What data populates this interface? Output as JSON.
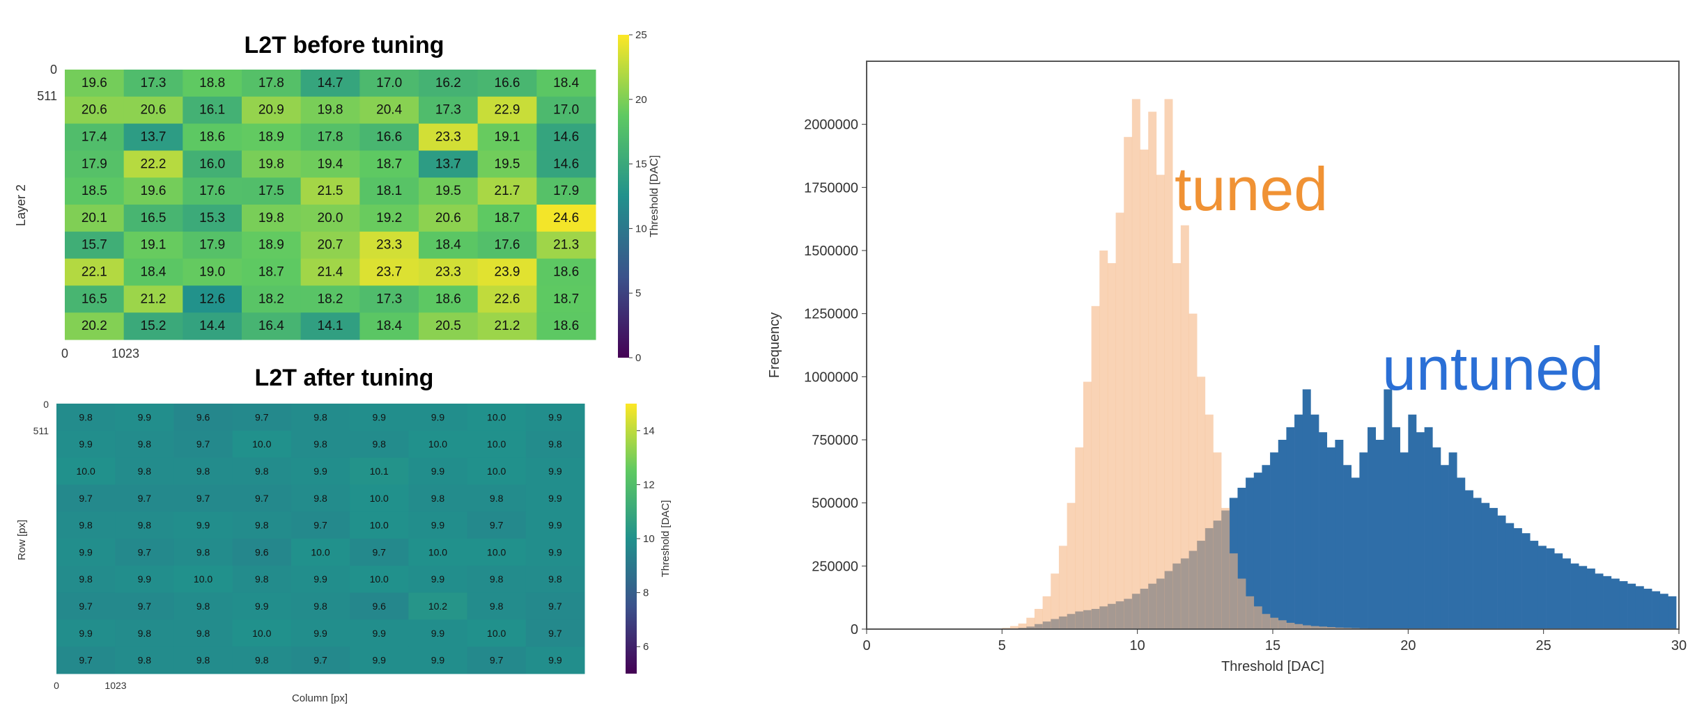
{
  "chart_data": [
    {
      "type": "heatmap",
      "title": "L2T before tuning",
      "ylabel": "Layer 2",
      "xlabel": "",
      "x_ticks": [
        "0",
        "1023"
      ],
      "y_ticks": [
        "0",
        "511"
      ],
      "colorbar_label": "Threshold [DAC]",
      "colorbar_ticks": [
        0,
        5,
        10,
        15,
        20,
        25
      ],
      "vmin": 0,
      "vmax": 25,
      "rows": 10,
      "cols": 9,
      "values": [
        [
          19.6,
          17.3,
          18.8,
          17.8,
          14.7,
          17.0,
          16.2,
          16.6,
          18.4
        ],
        [
          20.6,
          20.6,
          16.1,
          20.9,
          19.8,
          20.4,
          17.3,
          22.9,
          17.0
        ],
        [
          17.4,
          13.7,
          18.6,
          18.9,
          17.8,
          16.6,
          23.3,
          19.1,
          14.6
        ],
        [
          17.9,
          22.2,
          16.0,
          19.8,
          19.4,
          18.7,
          13.7,
          19.5,
          14.6
        ],
        [
          18.5,
          19.6,
          17.6,
          17.5,
          21.5,
          18.1,
          19.5,
          21.7,
          17.9
        ],
        [
          20.1,
          16.5,
          15.3,
          19.8,
          20.0,
          19.2,
          20.6,
          18.7,
          24.6
        ],
        [
          15.7,
          19.1,
          17.9,
          18.9,
          20.7,
          23.3,
          18.4,
          17.6,
          21.3
        ],
        [
          22.1,
          18.4,
          19.0,
          18.7,
          21.4,
          23.7,
          23.3,
          23.9,
          18.6
        ],
        [
          16.5,
          21.2,
          12.6,
          18.2,
          18.2,
          17.3,
          18.6,
          22.6,
          18.7
        ],
        [
          20.2,
          15.2,
          14.4,
          16.4,
          14.1,
          18.4,
          20.5,
          21.2,
          18.6
        ]
      ]
    },
    {
      "type": "heatmap",
      "title": "L2T after tuning",
      "ylabel": "Row [px]",
      "xlabel": "Column [px]",
      "x_ticks": [
        "0",
        "1023"
      ],
      "y_ticks": [
        "0",
        "511"
      ],
      "colorbar_label": "Threshold [DAC]",
      "colorbar_ticks": [
        6,
        8,
        10,
        12,
        14
      ],
      "vmin": 5,
      "vmax": 15,
      "rows": 10,
      "cols": 9,
      "values": [
        [
          9.8,
          9.9,
          9.6,
          9.7,
          9.8,
          9.9,
          9.9,
          10.0,
          9.9
        ],
        [
          9.9,
          9.8,
          9.7,
          10.0,
          9.8,
          9.8,
          10.0,
          10.0,
          9.8
        ],
        [
          10.0,
          9.8,
          9.8,
          9.8,
          9.9,
          10.1,
          9.9,
          10.0,
          9.9
        ],
        [
          9.7,
          9.7,
          9.7,
          9.7,
          9.8,
          10.0,
          9.8,
          9.8,
          9.9
        ],
        [
          9.8,
          9.8,
          9.9,
          9.8,
          9.7,
          10.0,
          9.9,
          9.7,
          9.9
        ],
        [
          9.9,
          9.7,
          9.8,
          9.6,
          10.0,
          9.7,
          10.0,
          10.0,
          9.9
        ],
        [
          9.8,
          9.9,
          10.0,
          9.8,
          9.9,
          10.0,
          9.9,
          9.8,
          9.8
        ],
        [
          9.7,
          9.7,
          9.8,
          9.9,
          9.8,
          9.6,
          10.2,
          9.8,
          9.7
        ],
        [
          9.9,
          9.8,
          9.8,
          10.0,
          9.9,
          9.9,
          9.9,
          10.0,
          9.7
        ],
        [
          9.7,
          9.8,
          9.8,
          9.8,
          9.7,
          9.9,
          9.9,
          9.7,
          9.9
        ]
      ]
    },
    {
      "type": "bar",
      "subtype": "histogram",
      "xlabel": "Threshold [DAC]",
      "ylabel": "Frequency",
      "xlim": [
        0,
        30
      ],
      "ylim": [
        0,
        2250000
      ],
      "x_ticks": [
        0,
        5,
        10,
        15,
        20,
        25,
        30
      ],
      "y_ticks": [
        0,
        250000,
        500000,
        750000,
        1000000,
        1250000,
        1500000,
        1750000,
        2000000
      ],
      "bin_start": 5,
      "bin_width": 0.3,
      "series": [
        {
          "name": "tuned",
          "color": "#f5b583",
          "values": [
            5000,
            12000,
            22000,
            45000,
            80000,
            130000,
            220000,
            330000,
            500000,
            720000,
            980000,
            1280000,
            1500000,
            1450000,
            1650000,
            1950000,
            2100000,
            1900000,
            2050000,
            1800000,
            2100000,
            1450000,
            1600000,
            1250000,
            1000000,
            850000,
            700000,
            480000,
            300000,
            200000,
            130000,
            90000,
            60000,
            45000,
            35000,
            25000,
            20000,
            15000,
            12000,
            10000,
            8000,
            6000,
            5000,
            4000,
            3000,
            2000,
            1500,
            1000,
            500,
            300
          ]
        },
        {
          "name": "untuned",
          "color": "#2f6ea8",
          "values": [
            1000,
            2000,
            5000,
            10000,
            20000,
            30000,
            40000,
            50000,
            60000,
            70000,
            75000,
            80000,
            90000,
            100000,
            110000,
            120000,
            140000,
            160000,
            180000,
            200000,
            230000,
            260000,
            280000,
            310000,
            350000,
            400000,
            430000,
            470000,
            520000,
            560000,
            600000,
            620000,
            650000,
            700000,
            750000,
            800000,
            850000,
            950000,
            850000,
            780000,
            720000,
            750000,
            650000,
            600000,
            700000,
            800000,
            750000,
            950000,
            800000,
            700000,
            850000,
            780000,
            800000,
            720000,
            650000,
            700000,
            600000,
            550000,
            520000,
            500000,
            480000,
            450000,
            420000,
            400000,
            380000,
            350000,
            330000,
            320000,
            300000,
            280000,
            260000,
            250000,
            240000,
            220000,
            210000,
            200000,
            190000,
            180000,
            170000,
            160000,
            150000,
            140000,
            130000,
            120000,
            110000
          ]
        }
      ]
    }
  ]
}
